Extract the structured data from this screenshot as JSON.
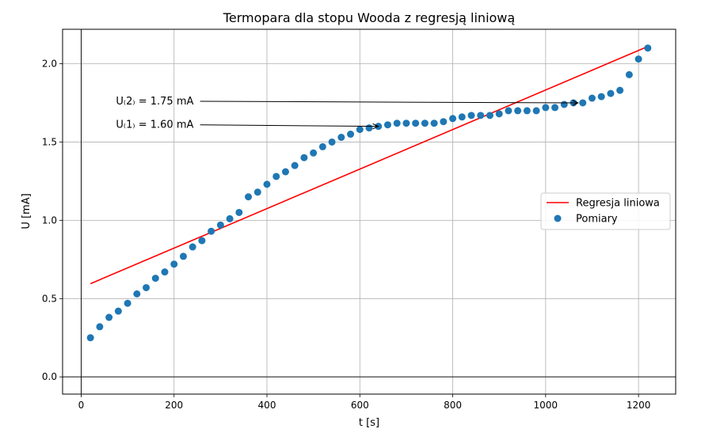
{
  "chart_data": {
    "type": "scatter",
    "title": "Termopara dla stopu Wooda z regresją liniową",
    "xlabel": "t [s]",
    "ylabel": "U [mA]",
    "xlim": [
      -40,
      1280
    ],
    "ylim": [
      -0.11,
      2.22
    ],
    "xticks": [
      0,
      200,
      400,
      600,
      800,
      1000,
      1200
    ],
    "yticks": [
      0.0,
      0.5,
      1.0,
      1.5,
      2.0
    ],
    "xtick_labels": [
      "0",
      "200",
      "400",
      "600",
      "800",
      "1000",
      "1200"
    ],
    "ytick_labels": [
      "0.0",
      "0.5",
      "1.0",
      "1.5",
      "2.0"
    ],
    "grid": true,
    "zero_lines": true,
    "legend_position": "center-right",
    "series": [
      {
        "name": "Regresja liniowa",
        "kind": "line",
        "color": "#ff0000",
        "x": [
          20,
          1220
        ],
        "y": [
          0.595,
          2.11
        ]
      },
      {
        "name": "Pomiary",
        "kind": "scatter",
        "color": "#1f77b4",
        "x": [
          20,
          40,
          60,
          80,
          100,
          120,
          140,
          160,
          180,
          200,
          220,
          240,
          260,
          280,
          300,
          320,
          340,
          360,
          380,
          400,
          420,
          440,
          460,
          480,
          500,
          520,
          540,
          560,
          580,
          600,
          620,
          640,
          660,
          680,
          700,
          720,
          740,
          760,
          780,
          800,
          820,
          840,
          860,
          880,
          900,
          920,
          940,
          960,
          980,
          1000,
          1020,
          1040,
          1060,
          1080,
          1100,
          1120,
          1140,
          1160,
          1180,
          1200,
          1220
        ],
        "y": [
          0.25,
          0.32,
          0.38,
          0.42,
          0.47,
          0.53,
          0.57,
          0.63,
          0.67,
          0.72,
          0.77,
          0.83,
          0.87,
          0.93,
          0.97,
          1.01,
          1.05,
          1.15,
          1.18,
          1.23,
          1.28,
          1.31,
          1.35,
          1.4,
          1.43,
          1.47,
          1.5,
          1.53,
          1.55,
          1.58,
          1.59,
          1.6,
          1.61,
          1.62,
          1.62,
          1.62,
          1.62,
          1.62,
          1.63,
          1.65,
          1.66,
          1.67,
          1.67,
          1.67,
          1.68,
          1.7,
          1.7,
          1.7,
          1.7,
          1.72,
          1.72,
          1.74,
          1.75,
          1.75,
          1.78,
          1.79,
          1.81,
          1.83,
          1.93,
          2.03,
          2.1
        ]
      }
    ],
    "annotations": [
      {
        "text": "U₍2₎ = 1.75 mA",
        "text_x": 75,
        "text_y": 1.76,
        "arrow_to_x": 1070,
        "arrow_to_y": 1.75
      },
      {
        "text": "U₍1₎ = 1.60 mA",
        "text_x": 75,
        "text_y": 1.61,
        "arrow_to_x": 640,
        "arrow_to_y": 1.6
      }
    ]
  }
}
